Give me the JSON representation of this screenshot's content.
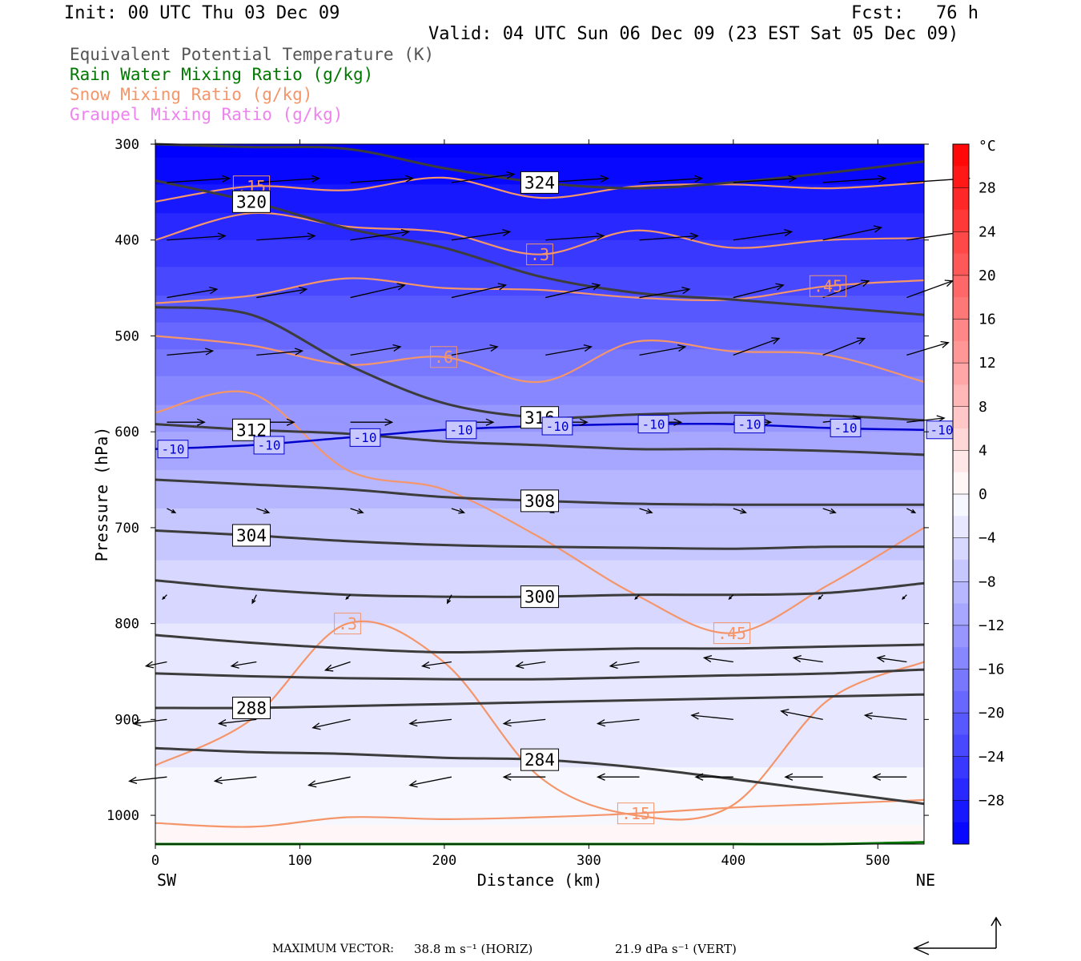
{
  "header": {
    "init": "Init: 00 UTC Thu 03 Dec 09",
    "fcst": "Fcst:   76 h",
    "valid": "Valid: 04 UTC Sun 06 Dec 09 (23 EST Sat 05 Dec 09)"
  },
  "legend": {
    "theta_e": "Equivalent Potential Temperature (K)",
    "rain": "Rain Water Mixing Ratio (g/kg)",
    "snow": "Snow Mixing Ratio (g/kg)",
    "graupel": "Graupel Mixing Ratio (g/kg)"
  },
  "colors": {
    "theta_e": "#3c3c3c",
    "rain": "#007800",
    "snow": "#f4956a",
    "graupel": "#ee82ee",
    "isotherm": "#0000cc",
    "background_cold": "#0000ff",
    "background_warm": "#ff0000"
  },
  "footer": {
    "max_vector_label": "MAXIMUM VECTOR:",
    "horiz": "38.8 m s⁻¹ (HORIZ)",
    "vert": "21.9 dPa s⁻¹ (VERT)"
  },
  "chart_data": {
    "type": "heatmap",
    "xlabel": "Distance (km)",
    "ylabel": "Pressure (hPa)",
    "xlim": [
      0,
      532
    ],
    "ylim": [
      1030,
      300
    ],
    "xticks": [
      0,
      100,
      200,
      300,
      400,
      500
    ],
    "yticks": [
      300,
      400,
      500,
      600,
      700,
      800,
      900,
      1000
    ],
    "x_end_labels": {
      "left": "SW",
      "right": "NE"
    },
    "colorbar": {
      "unit": "°C",
      "tick_labels": [
        "28",
        "24",
        "20",
        "16",
        "12",
        "8",
        "4",
        "0",
        "−4",
        "−8",
        "−12",
        "−16",
        "−20",
        "−24",
        "−28"
      ],
      "range": [
        -32,
        32
      ],
      "step": 2
    },
    "shading": {
      "name": "Temperature",
      "profile_p": [
        300,
        400,
        500,
        600,
        700,
        800,
        900,
        1000,
        1030
      ],
      "profile_T": [
        -33,
        -26,
        -19,
        -12,
        -7,
        -4,
        -3,
        -1,
        2
      ]
    },
    "theta_e_contours": [
      {
        "label": "324",
        "p": [
          300,
          303,
          305,
          325,
          340,
          346,
          340,
          330,
          318
        ]
      },
      {
        "label": "320",
        "p": [
          338,
          360,
          388,
          408,
          438,
          455,
          462,
          470,
          478
        ]
      },
      {
        "label": "316",
        "p": [
          470,
          478,
          530,
          570,
          585,
          582,
          580,
          583,
          588
        ]
      },
      {
        "label": "312",
        "p": [
          592,
          598,
          602,
          610,
          614,
          618,
          618,
          620,
          624
        ]
      },
      {
        "label": "308",
        "p": [
          650,
          655,
          660,
          668,
          672,
          675,
          676,
          676,
          676
        ]
      },
      {
        "label": "304",
        "p": [
          703,
          708,
          714,
          718,
          720,
          721,
          722,
          720,
          720
        ]
      },
      {
        "label": "300",
        "p": [
          755,
          764,
          770,
          772,
          772,
          770,
          770,
          768,
          758
        ]
      },
      {
        "label": "",
        "p": [
          812,
          820,
          826,
          830,
          828,
          826,
          826,
          824,
          822
        ]
      },
      {
        "label": "",
        "p": [
          852,
          855,
          857,
          858,
          858,
          856,
          854,
          852,
          848
        ]
      },
      {
        "label": "288",
        "p": [
          888,
          888,
          886,
          884,
          882,
          880,
          878,
          876,
          874
        ]
      },
      {
        "label": "284",
        "p": [
          930,
          934,
          936,
          940,
          942,
          950,
          962,
          975,
          988
        ]
      }
    ],
    "isotherm": {
      "label": "-10",
      "p": [
        618,
        614,
        606,
        598,
        594,
        592,
        592,
        596,
        598
      ]
    },
    "snow_contours": [
      {
        "label": ".15",
        "p": [
          360,
          344,
          348,
          335,
          356,
          344,
          342,
          346,
          340
        ]
      },
      {
        "label": ".3",
        "p": [
          400,
          372,
          386,
          392,
          415,
          390,
          408,
          400,
          398
        ]
      },
      {
        "label": ".45",
        "p": [
          466,
          458,
          440,
          450,
          452,
          460,
          462,
          448,
          442
        ]
      },
      {
        "label": ".6",
        "p": [
          500,
          510,
          530,
          522,
          548,
          506,
          516,
          520,
          548
        ]
      },
      {
        "label": ".45",
        "p": [
          580,
          560,
          640,
          660,
          710,
          770,
          810,
          760,
          700
        ]
      },
      {
        "label": ".3",
        "p": [
          948,
          900,
          800,
          840,
          960,
          1000,
          990,
          880,
          840
        ]
      },
      {
        "label": ".15",
        "p": [
          1008,
          1012,
          1002,
          1004,
          1002,
          998,
          992,
          988,
          984
        ]
      }
    ],
    "rain_contour": {
      "label": "",
      "p": [
        1030,
        1030,
        1030,
        1030,
        1030,
        1030,
        1030,
        1030,
        1028
      ]
    },
    "wind_vectors": {
      "x_km": [
        8,
        70,
        135,
        205,
        270,
        335,
        400,
        462,
        520
      ],
      "p_levels": [
        340,
        400,
        460,
        520,
        590,
        680,
        770,
        840,
        900,
        960
      ],
      "u": [
        [
          30,
          30,
          30,
          30,
          30,
          30,
          30,
          30,
          30
        ],
        [
          28,
          28,
          28,
          28,
          28,
          28,
          28,
          28,
          28
        ],
        [
          24,
          24,
          26,
          26,
          26,
          24,
          24,
          22,
          22
        ],
        [
          22,
          22,
          24,
          22,
          22,
          22,
          22,
          20,
          20
        ],
        [
          18,
          18,
          20,
          20,
          20,
          20,
          18,
          18,
          18
        ],
        [
          4,
          6,
          6,
          6,
          4,
          6,
          6,
          6,
          4
        ],
        [
          -2,
          -2,
          -2,
          -2,
          -2,
          -2,
          -2,
          -2,
          -2
        ],
        [
          -10,
          -12,
          -12,
          -14,
          -14,
          -14,
          -14,
          -14,
          -14
        ],
        [
          -16,
          -18,
          -18,
          -20,
          -20,
          -20,
          -20,
          -20,
          -20
        ],
        [
          -18,
          -20,
          -20,
          -20,
          -20,
          -20,
          -18,
          -18,
          -16
        ]
      ],
      "w": [
        [
          1,
          1,
          1,
          2,
          1,
          1,
          1,
          1,
          1
        ],
        [
          1,
          1,
          2,
          2,
          1,
          1,
          2,
          3,
          2
        ],
        [
          2,
          2,
          3,
          3,
          3,
          2,
          3,
          4,
          4
        ],
        [
          1,
          1,
          2,
          2,
          2,
          2,
          4,
          4,
          3
        ],
        [
          0,
          0,
          0,
          0,
          0,
          0,
          0,
          1,
          1
        ],
        [
          -1,
          -1,
          -1,
          -1,
          -1,
          -1,
          -1,
          -1,
          -1
        ],
        [
          -1,
          -2,
          -1,
          -2,
          -1,
          -1,
          -1,
          -1,
          -1
        ],
        [
          -1,
          -1,
          -2,
          -1,
          -1,
          -1,
          1,
          1,
          1
        ],
        [
          -1,
          -1,
          -2,
          -1,
          -1,
          -1,
          1,
          2,
          1
        ],
        [
          -1,
          -1,
          -2,
          -2,
          0,
          0,
          0,
          0,
          0
        ]
      ]
    }
  }
}
